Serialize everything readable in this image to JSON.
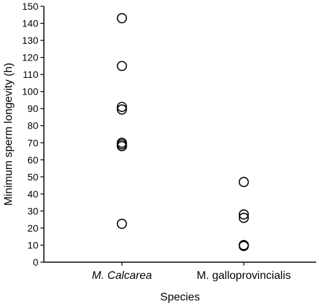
{
  "chart_data": {
    "type": "scatter",
    "title": "",
    "xlabel": "Species",
    "ylabel": "Minimum sperm longevity (h)",
    "categories": [
      "M. Calcarea",
      "M. galloprovincialis"
    ],
    "category_styles": [
      "italic",
      "normal"
    ],
    "ylim": [
      0,
      150
    ],
    "yticks": [
      0,
      10,
      20,
      30,
      40,
      50,
      60,
      70,
      80,
      90,
      100,
      110,
      120,
      130,
      140,
      150
    ],
    "series": [
      {
        "category": "M. Calcarea",
        "values": [
          143,
          115,
          91,
          89.5,
          70,
          69,
          68,
          22.5
        ]
      },
      {
        "category": "M. galloprovincialis",
        "values": [
          47,
          28,
          26,
          10,
          9.5
        ]
      }
    ],
    "grid": false,
    "legend": "none"
  }
}
